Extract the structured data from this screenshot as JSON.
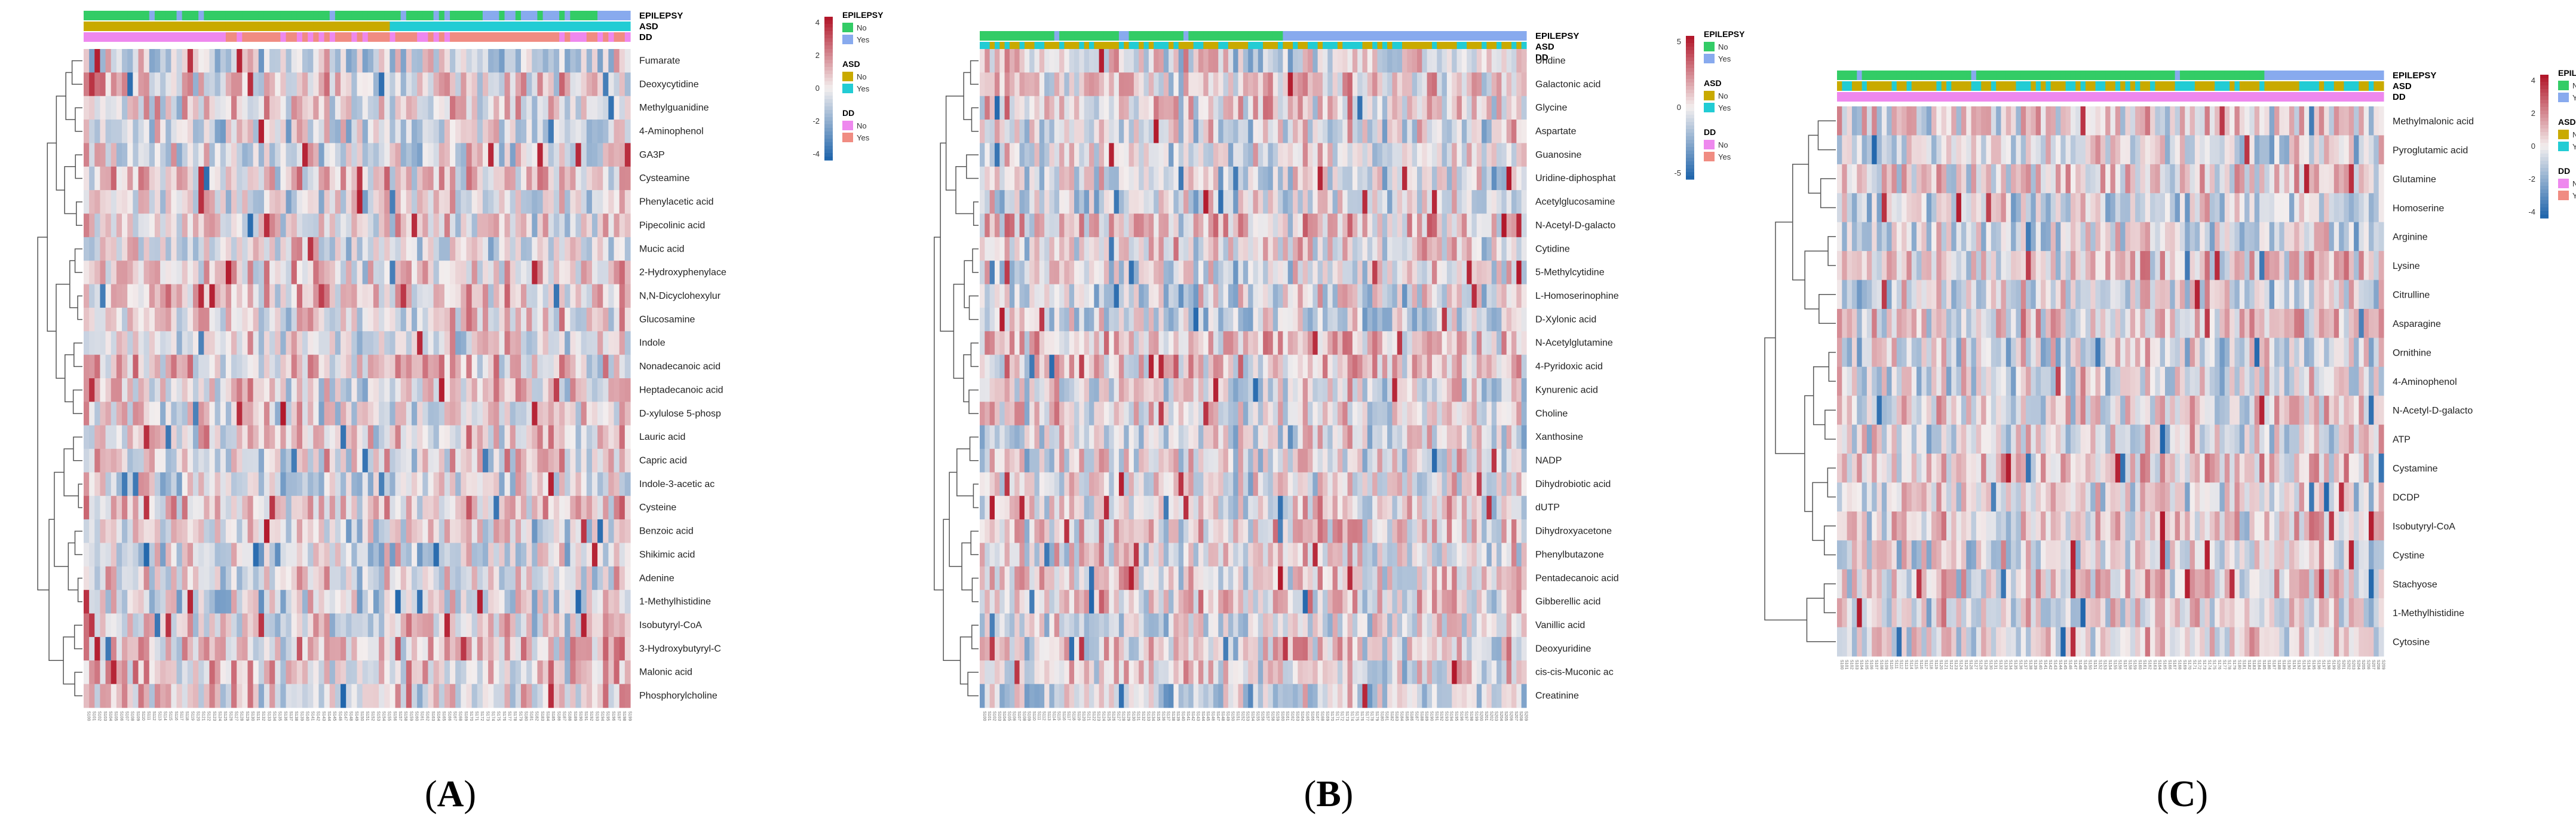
{
  "figure": {
    "panels": [
      "A",
      "B",
      "C"
    ]
  },
  "palette": {
    "epilepsy_no": "#33cc66",
    "epilepsy_yes": "#88aaee",
    "asd_no": "#c9aa00",
    "asd_yes": "#22ccd4",
    "dd_no": "#ee88ee",
    "dd_yes": "#f08c82",
    "low": "#2166ac",
    "mid": "#f3eeee",
    "high": "#b2182b"
  },
  "chart_data": [
    {
      "type": "heatmap",
      "panel": "A",
      "rows": [
        "Fumarate",
        "Deoxycytidine",
        "Methylguanidine",
        "4-Aminophenol",
        "GA3P",
        "Cysteamine",
        "Phenylacetic acid",
        "Pipecolinic acid",
        "Mucic acid",
        "2-Hydroxyphenylace",
        "N,N-Dicyclohexylur",
        "Glucosamine",
        "Indole",
        "Nonadecanoic acid",
        "Heptadecanoic acid",
        "D-xylulose 5-phosp",
        "Lauric acid",
        "Capric acid",
        "Indole-3-acetic ac",
        "Cysteine",
        "Benzoic acid",
        "Shikimic acid",
        "Adenine",
        "1-Methylhistidine",
        "Isobutyryl-CoA",
        "3-Hydroxybutyryl-C",
        "Malonic acid",
        "Phosphorylcholine"
      ],
      "columns": 100,
      "annotation_tracks": [
        "EPILEPSY",
        "ASD",
        "DD"
      ],
      "legend": {
        "color_scale": {
          "min": -4,
          "max": 4,
          "ticks": [
            "4",
            "2",
            "0",
            "-2",
            "-4"
          ]
        },
        "groups": [
          {
            "title": "EPILEPSY",
            "items": [
              "No",
              "Yes"
            ]
          },
          {
            "title": "ASD",
            "items": [
              "No",
              "Yes"
            ]
          },
          {
            "title": "DD",
            "items": [
              "No",
              "Yes"
            ]
          }
        ]
      }
    },
    {
      "type": "heatmap",
      "panel": "B",
      "rows": [
        "Uridine",
        "Galactonic acid",
        "Glycine",
        "Aspartate",
        "Guanosine",
        "Uridine-diphosphat",
        "Acetylglucosamine",
        "N-Acetyl-D-galacto",
        "Cytidine",
        "5-Methylcytidine",
        "L-Homoserinophine",
        "D-Xylonic acid",
        "N-Acetylglutamine",
        "4-Pyridoxic acid",
        "Kynurenic acid",
        "Choline",
        "Xanthosine",
        "NADP",
        "Dihydrobiotic acid",
        "dUTP",
        "Dihydroxyacetone",
        "Phenylbutazone",
        "Pentadecanoic acid",
        "Gibberellic acid",
        "Vanillic acid",
        "Deoxyuridine",
        "cis-cis-Muconic ac",
        "Creatinine"
      ],
      "columns": 110,
      "annotation_tracks": [
        "EPILEPSY",
        "ASD",
        "DD"
      ],
      "legend": {
        "color_scale": {
          "min": -6,
          "max": 6,
          "ticks": [
            "5",
            "0",
            "-5"
          ]
        },
        "groups": [
          {
            "title": "EPILEPSY",
            "items": [
              "No",
              "Yes"
            ]
          },
          {
            "title": "ASD",
            "items": [
              "No",
              "Yes"
            ]
          },
          {
            "title": "DD",
            "items": [
              "No",
              "Yes"
            ]
          }
        ]
      }
    },
    {
      "type": "heatmap",
      "panel": "C",
      "rows": [
        "Methylmalonic acid",
        "Pyroglutamic acid",
        "Glutamine",
        "Homoserine",
        "Arginine",
        "Lysine",
        "Citrulline",
        "Asparagine",
        "Ornithine",
        "4-Aminophenol",
        "N-Acetyl-D-galacto",
        "ATP",
        "Cystamine",
        "DCDP",
        "Isobutyryl-CoA",
        "Cystine",
        "Stachyose",
        "1-Methylhistidine",
        "Cytosine"
      ],
      "columns": 110,
      "annotation_tracks": [
        "EPILEPSY",
        "ASD",
        "DD"
      ],
      "legend": {
        "color_scale": {
          "min": -4,
          "max": 4,
          "ticks": [
            "4",
            "2",
            "0",
            "-2",
            "-4"
          ]
        },
        "groups": [
          {
            "title": "EPILEPSY",
            "items": [
              "No",
              "Yes"
            ]
          },
          {
            "title": "ASD",
            "items": [
              "No",
              "Yes"
            ]
          },
          {
            "title": "DD",
            "items": [
              "No",
              "Yes"
            ]
          }
        ]
      }
    }
  ]
}
